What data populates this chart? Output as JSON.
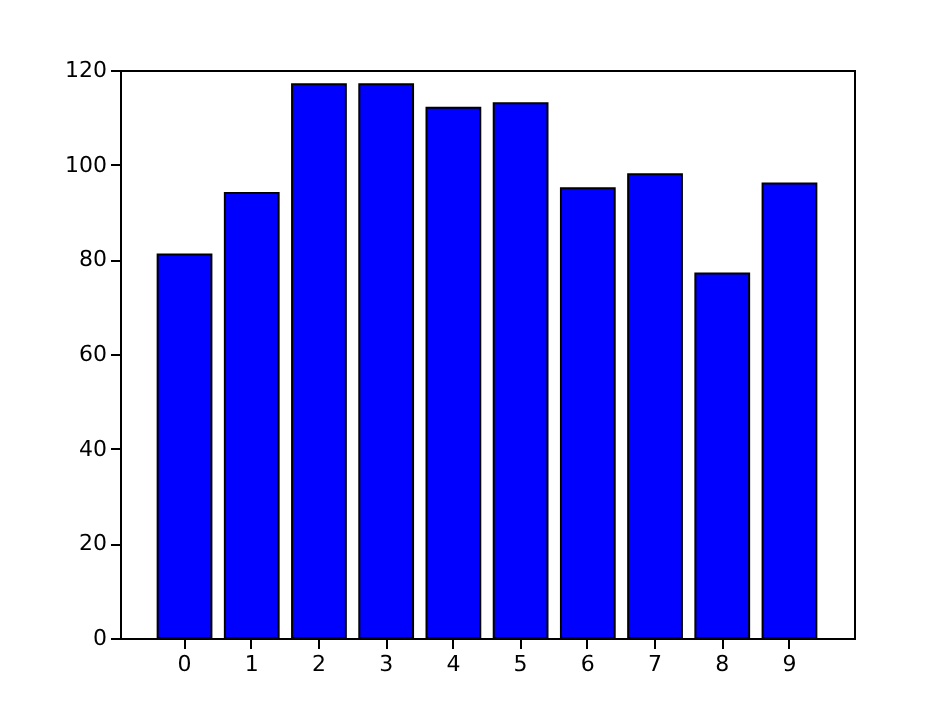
{
  "chart_data": {
    "type": "bar",
    "categories": [
      "0",
      "1",
      "2",
      "3",
      "4",
      "5",
      "6",
      "7",
      "8",
      "9"
    ],
    "values": [
      81,
      94,
      117,
      117,
      112,
      113,
      95,
      98,
      77,
      96
    ],
    "color": "#0000ff",
    "ylim": [
      0,
      120
    ],
    "yticks": [
      0,
      20,
      40,
      60,
      80,
      100,
      120
    ],
    "grid": false
  }
}
